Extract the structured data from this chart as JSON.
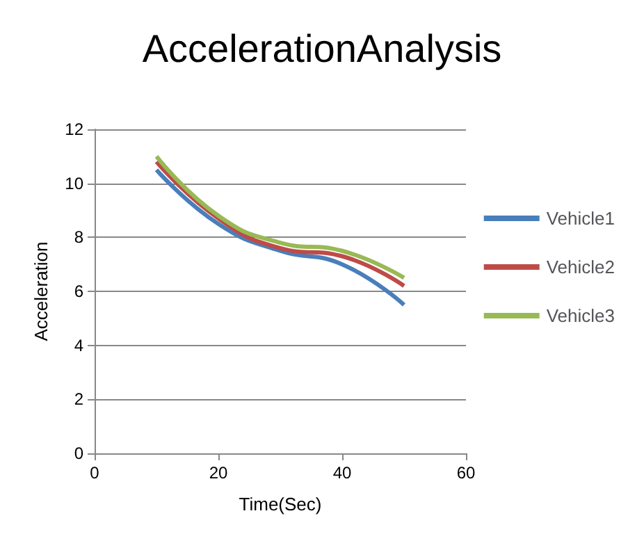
{
  "chart_data": {
    "type": "line",
    "title": "AccelerationAnalysis",
    "xlabel": "Time(Sec)",
    "ylabel": "Acceleration",
    "x": [
      10,
      20,
      30,
      40,
      50
    ],
    "series": [
      {
        "name": "Vehicle1",
        "color": "#4a7ebb",
        "values": [
          10.5,
          8.5,
          7.5,
          7,
          5.5
        ]
      },
      {
        "name": "Vehicle2",
        "color": "#be4b48",
        "values": [
          10.8,
          8.7,
          7.6,
          7.3,
          6.2
        ]
      },
      {
        "name": "Vehicle3",
        "color": "#98b954",
        "values": [
          11,
          8.8,
          7.8,
          7.5,
          6.5
        ]
      }
    ],
    "xlim": [
      0,
      60
    ],
    "xticks": [
      0,
      20,
      40,
      60
    ],
    "ylim": [
      0,
      12
    ],
    "yticks": [
      0,
      2,
      4,
      6,
      8,
      10,
      12
    ],
    "grid": "y",
    "legend": "right",
    "marker": "none",
    "line_style": "solid"
  }
}
